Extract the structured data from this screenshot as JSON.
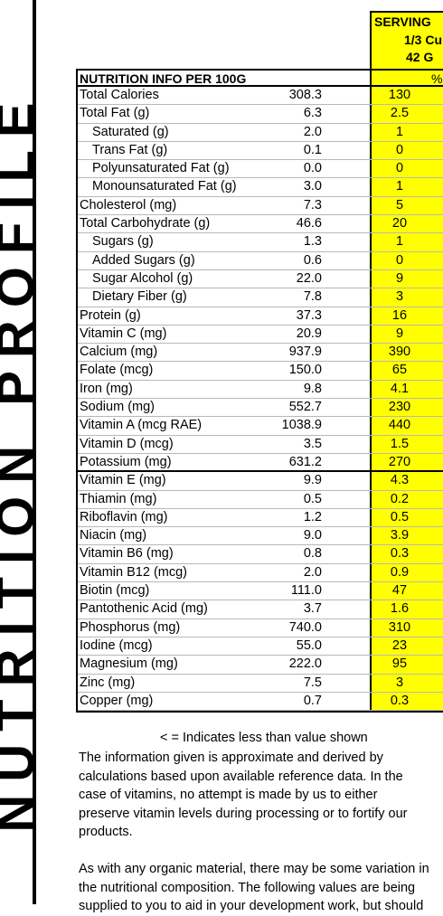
{
  "side_title": "NUTRITION PROFILE",
  "serving": {
    "title": "SERVING",
    "size": "1/3 Cu",
    "weight": "42 G",
    "pct": "%"
  },
  "table": {
    "header": "NUTRITION INFO PER 100G",
    "rows": [
      {
        "name": "Total Calories",
        "value": "308.3",
        "serving": "130"
      },
      {
        "name": "Total Fat (g)",
        "value": "6.3",
        "serving": "2.5"
      },
      {
        "name": "Saturated (g)",
        "value": "2.0",
        "serving": "1",
        "indent": true
      },
      {
        "name": "Trans Fat (g)",
        "value": "0.1",
        "serving": "0",
        "indent": true
      },
      {
        "name": "Polyunsaturated Fat (g)",
        "value": "0.0",
        "serving": "0",
        "indent": true
      },
      {
        "name": "Monounsaturated Fat (g)",
        "value": "3.0",
        "serving": "1",
        "indent": true
      },
      {
        "name": "Cholesterol (mg)",
        "value": "7.3",
        "serving": "5"
      },
      {
        "name": "Total Carbohydrate (g)",
        "value": "46.6",
        "serving": "20"
      },
      {
        "name": "Sugars (g)",
        "value": "1.3",
        "serving": "1",
        "indent": true
      },
      {
        "name": "Added Sugars (g)",
        "value": "0.6",
        "serving": "0",
        "indent": true
      },
      {
        "name": "Sugar Alcohol (g)",
        "value": "22.0",
        "serving": "9",
        "indent": true
      },
      {
        "name": "Dietary Fiber (g)",
        "value": "7.8",
        "serving": "3",
        "indent": true
      },
      {
        "name": "Protein (g)",
        "value": "37.3",
        "serving": "16"
      },
      {
        "name": "Vitamin C (mg)",
        "value": "20.9",
        "serving": "9"
      },
      {
        "name": "Calcium (mg)",
        "value": "937.9",
        "serving": "390"
      },
      {
        "name": "Folate (mcg)",
        "value": "150.0",
        "serving": "65"
      },
      {
        "name": "Iron (mg)",
        "value": "9.8",
        "serving": "4.1"
      },
      {
        "name": "Sodium (mg)",
        "value": "552.7",
        "serving": "230"
      },
      {
        "name": "Vitamin A (mcg RAE)",
        "value": "1038.9",
        "serving": "440"
      },
      {
        "name": "Vitamin D (mcg)",
        "value": "3.5",
        "serving": "1.5"
      },
      {
        "name": "Potassium (mg)",
        "value": "631.2",
        "serving": "270"
      },
      {
        "name": "Vitamin E (mg)",
        "value": "9.9",
        "serving": "4.3"
      },
      {
        "name": "Thiamin (mg)",
        "value": "0.5",
        "serving": "0.2"
      },
      {
        "name": "Riboflavin (mg)",
        "value": "1.2",
        "serving": "0.5"
      },
      {
        "name": "Niacin (mg)",
        "value": "9.0",
        "serving": "3.9"
      },
      {
        "name": "Vitamin B6 (mg)",
        "value": "0.8",
        "serving": "0.3"
      },
      {
        "name": "Vitamin B12 (mcg)",
        "value": "2.0",
        "serving": "0.9"
      },
      {
        "name": "Biotin (mcg)",
        "value": "111.0",
        "serving": "47"
      },
      {
        "name": "Pantothenic Acid (mg)",
        "value": "3.7",
        "serving": "1.6"
      },
      {
        "name": "Phosphorus (mg)",
        "value": "740.0",
        "serving": "310"
      },
      {
        "name": "Iodine (mcg)",
        "value": "55.0",
        "serving": "23"
      },
      {
        "name": "Magnesium (mg)",
        "value": "222.0",
        "serving": "95"
      },
      {
        "name": "Zinc (mg)",
        "value": "7.5",
        "serving": "3"
      },
      {
        "name": "Copper (mg)",
        "value": "0.7",
        "serving": "0.3"
      }
    ]
  },
  "footnote": "< = Indicates less than value shown",
  "paragraph1": [
    "The information given is approximate and derived by",
    "calculations based upon available reference data.  In the",
    "case of vitamins, no attempt is made by us to either",
    "preserve vitamin levels during processing or to fortify our",
    "products."
  ],
  "paragraph2": [
    "As with any organic material, there may be some variation in",
    "the nutritional composition.  The following values are being",
    "supplied to you to aid in your development work, but should"
  ]
}
